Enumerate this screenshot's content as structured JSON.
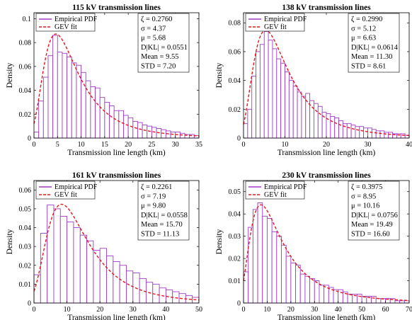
{
  "chart_data": [
    {
      "type": "bar",
      "title": "115 kV transmission lines",
      "xlabel": "Transmission line length (km)",
      "ylabel": "Density",
      "xlim": [
        0,
        35
      ],
      "ylim": [
        0,
        0.105
      ],
      "xticks": [
        0,
        5,
        10,
        15,
        20,
        25,
        30,
        35
      ],
      "yticks": [
        0,
        0.02,
        0.04,
        0.06,
        0.08,
        0.1
      ],
      "ytick_labels": [
        "0",
        "0.02",
        "0.04",
        "0.06",
        "0.08",
        "0.1"
      ],
      "legend": [
        "Empirical PDF",
        "GEV fit"
      ],
      "gev": {
        "k": 0.276,
        "sigma": 4.37,
        "mu": 5.68
      },
      "stats": [
        "ζ = 0.2760",
        "σ = 4.37",
        "μ = 5.68",
        "D|KL| = 0.0551",
        "Mean = 9.55",
        "STD = 7.20"
      ],
      "bin_width": 1,
      "bin_start": 0,
      "values": [
        0.005,
        0.031,
        0.051,
        0.069,
        0.086,
        0.072,
        0.071,
        0.068,
        0.063,
        0.061,
        0.055,
        0.048,
        0.043,
        0.042,
        0.034,
        0.03,
        0.027,
        0.023,
        0.023,
        0.019,
        0.017,
        0.014,
        0.013,
        0.011,
        0.01,
        0.009,
        0.008,
        0.007,
        0.006,
        0.005,
        0.005,
        0.004,
        0.003,
        0.003,
        0.002
      ]
    },
    {
      "type": "bar",
      "title": "138 kV transmission lines",
      "xlabel": "Transmission line length (km)",
      "ylabel": "Density",
      "xlim": [
        0,
        40
      ],
      "ylim": [
        0,
        0.087
      ],
      "xticks": [
        0,
        10,
        20,
        30,
        40
      ],
      "yticks": [
        0,
        0.02,
        0.04,
        0.06,
        0.08
      ],
      "ytick_labels": [
        "0",
        "0.02",
        "0.04",
        "0.06",
        "0.08"
      ],
      "legend": [
        "Empirical PDF",
        "GEV fit"
      ],
      "gev": {
        "k": 0.299,
        "sigma": 5.12,
        "mu": 6.63
      },
      "stats": [
        "ζ = 0.2990",
        "σ = 5.12",
        "μ = 6.63",
        "D|KL| = 0.0614",
        "Mean = 11.30",
        "STD = 8.61"
      ],
      "bin_width": 1,
      "bin_start": 0,
      "values": [
        0.01,
        0.02,
        0.043,
        0.06,
        0.065,
        0.074,
        0.068,
        0.062,
        0.055,
        0.052,
        0.046,
        0.04,
        0.036,
        0.032,
        0.029,
        0.031,
        0.026,
        0.024,
        0.022,
        0.018,
        0.017,
        0.015,
        0.014,
        0.012,
        0.01,
        0.01,
        0.009,
        0.008,
        0.008,
        0.007,
        0.007,
        0.006,
        0.005,
        0.005,
        0.004,
        0.004,
        0.003,
        0.003,
        0.003,
        0.002
      ]
    },
    {
      "type": "bar",
      "title": "161 kV transmission lines",
      "xlabel": "Transmission line length (km)",
      "ylabel": "Density",
      "xlim": [
        0,
        50
      ],
      "ylim": [
        0,
        0.065
      ],
      "xticks": [
        0,
        10,
        20,
        30,
        40,
        50
      ],
      "yticks": [
        0,
        0.01,
        0.02,
        0.03,
        0.04,
        0.05,
        0.06
      ],
      "ytick_labels": [
        "0",
        "0.01",
        "0.02",
        "0.03",
        "0.04",
        "0.05",
        "0.06"
      ],
      "legend": [
        "Empirical PDF",
        "GEV fit"
      ],
      "gev": {
        "k": 0.2261,
        "sigma": 7.19,
        "mu": 9.8
      },
      "stats": [
        "ζ = 0.2261",
        "σ = 7.19",
        "μ = 9.80",
        "D|KL| = 0.0558",
        "Mean = 15.70",
        "STD = 11.13"
      ],
      "bin_width": 2,
      "bin_start": 0,
      "values": [
        0.015,
        0.037,
        0.052,
        0.05,
        0.046,
        0.043,
        0.04,
        0.036,
        0.033,
        0.028,
        0.029,
        0.025,
        0.022,
        0.02,
        0.017,
        0.016,
        0.013,
        0.011,
        0.01,
        0.008,
        0.007,
        0.006,
        0.005,
        0.004,
        0.003
      ]
    },
    {
      "type": "bar",
      "title": "230 kV transmission lines",
      "xlabel": "Transmission line length (km)",
      "ylabel": "Density",
      "xlim": [
        0,
        70
      ],
      "ylim": [
        0,
        0.055
      ],
      "xticks": [
        0,
        10,
        20,
        30,
        40,
        50,
        60,
        70
      ],
      "yticks": [
        0,
        0.01,
        0.02,
        0.03,
        0.04,
        0.05
      ],
      "ytick_labels": [
        "0",
        "0.01",
        "0.02",
        "0.03",
        "0.04",
        "0.05"
      ],
      "legend": [
        "Empirical PDF",
        "GEV fit"
      ],
      "gev": {
        "k": 0.3975,
        "sigma": 8.95,
        "mu": 10.16
      },
      "stats": [
        "ζ = 0.3975",
        "σ = 8.95",
        "μ = 10.16",
        "D|KL| = 0.0756",
        "Mean = 19.49",
        "STD = 16.60"
      ],
      "bin_width": 2,
      "bin_start": 0,
      "values": [
        0.014,
        0.034,
        0.042,
        0.045,
        0.039,
        0.038,
        0.032,
        0.03,
        0.026,
        0.021,
        0.018,
        0.017,
        0.013,
        0.012,
        0.011,
        0.01,
        0.008,
        0.008,
        0.007,
        0.006,
        0.006,
        0.005,
        0.004,
        0.004,
        0.004,
        0.003,
        0.003,
        0.003,
        0.002,
        0.002,
        0.002,
        0.002,
        0.001,
        0.001,
        0.001
      ]
    }
  ],
  "colors": {
    "bar": "#a03cc8",
    "fit": "#e8161b",
    "axis": "#000000"
  }
}
